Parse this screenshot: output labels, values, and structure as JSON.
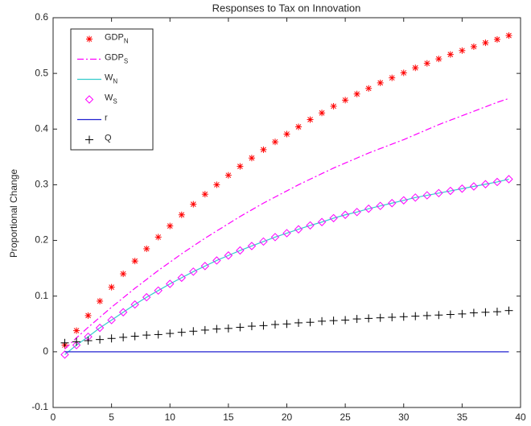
{
  "chart_data": {
    "type": "line",
    "title": "Responses to Tax on Innovation",
    "y_label": "Proportional Change",
    "x": [
      1,
      2,
      3,
      4,
      5,
      6,
      7,
      8,
      9,
      10,
      11,
      12,
      13,
      14,
      15,
      16,
      17,
      18,
      19,
      20,
      21,
      22,
      23,
      24,
      25,
      26,
      27,
      28,
      29,
      30,
      31,
      32,
      33,
      34,
      35,
      36,
      37,
      38,
      39
    ],
    "series": [
      {
        "name": "GDP_N",
        "color": "#ff0000",
        "marker": "star",
        "line": null,
        "values": [
          0.012,
          0.038,
          0.065,
          0.091,
          0.116,
          0.14,
          0.163,
          0.185,
          0.206,
          0.226,
          0.246,
          0.265,
          0.283,
          0.3,
          0.317,
          0.333,
          0.348,
          0.363,
          0.377,
          0.391,
          0.404,
          0.417,
          0.429,
          0.441,
          0.452,
          0.463,
          0.473,
          0.483,
          0.492,
          0.501,
          0.51,
          0.518,
          0.526,
          0.534,
          0.541,
          0.548,
          0.555,
          0.561,
          0.568
        ]
      },
      {
        "name": "GDP_S",
        "color": "#ff00ff",
        "marker": null,
        "line": "dashdot",
        "values": [
          0.005,
          0.025,
          0.044,
          0.062,
          0.08,
          0.097,
          0.114,
          0.13,
          0.146,
          0.161,
          0.176,
          0.19,
          0.204,
          0.217,
          0.23,
          0.243,
          0.255,
          0.267,
          0.278,
          0.289,
          0.3,
          0.31,
          0.32,
          0.33,
          0.339,
          0.348,
          0.357,
          0.365,
          0.373,
          0.381,
          0.39,
          0.399,
          0.408,
          0.416,
          0.424,
          0.432,
          0.44,
          0.448,
          0.455
        ]
      },
      {
        "name": "W_N",
        "color": "#33cccc",
        "marker": null,
        "line": "solid",
        "values": [
          -0.005,
          0.012,
          0.027,
          0.043,
          0.057,
          0.071,
          0.085,
          0.098,
          0.11,
          0.122,
          0.133,
          0.144,
          0.154,
          0.164,
          0.173,
          0.182,
          0.19,
          0.198,
          0.206,
          0.213,
          0.22,
          0.227,
          0.233,
          0.24,
          0.246,
          0.251,
          0.257,
          0.262,
          0.267,
          0.272,
          0.277,
          0.281,
          0.285,
          0.289,
          0.293,
          0.297,
          0.301,
          0.305,
          0.31
        ]
      },
      {
        "name": "W_S",
        "color": "#ff00ff",
        "marker": "diamond",
        "line": null,
        "values": [
          -0.005,
          0.012,
          0.027,
          0.043,
          0.057,
          0.071,
          0.085,
          0.098,
          0.11,
          0.122,
          0.133,
          0.144,
          0.154,
          0.164,
          0.173,
          0.182,
          0.19,
          0.198,
          0.206,
          0.213,
          0.22,
          0.227,
          0.233,
          0.24,
          0.246,
          0.251,
          0.257,
          0.262,
          0.267,
          0.272,
          0.277,
          0.281,
          0.285,
          0.289,
          0.293,
          0.297,
          0.301,
          0.305,
          0.31
        ]
      },
      {
        "name": "r",
        "color": "#2020d0",
        "marker": null,
        "line": "solid",
        "values": [
          0,
          0,
          0,
          0,
          0,
          0,
          0,
          0,
          0,
          0,
          0,
          0,
          0,
          0,
          0,
          0,
          0,
          0,
          0,
          0,
          0,
          0,
          0,
          0,
          0,
          0,
          0,
          0,
          0,
          0,
          0,
          0,
          0,
          0,
          0,
          0,
          0,
          0,
          0
        ]
      },
      {
        "name": "Q",
        "color": "#000000",
        "marker": "plus",
        "line": null,
        "values": [
          0.016,
          0.018,
          0.02,
          0.022,
          0.024,
          0.026,
          0.028,
          0.03,
          0.031,
          0.033,
          0.035,
          0.037,
          0.039,
          0.041,
          0.042,
          0.044,
          0.046,
          0.047,
          0.049,
          0.05,
          0.052,
          0.053,
          0.055,
          0.056,
          0.057,
          0.059,
          0.06,
          0.061,
          0.062,
          0.063,
          0.064,
          0.065,
          0.066,
          0.067,
          0.068,
          0.07,
          0.071,
          0.072,
          0.074
        ]
      }
    ],
    "xlim": [
      0,
      40
    ],
    "xticks": [
      0,
      5,
      10,
      15,
      20,
      25,
      30,
      35,
      40
    ],
    "ylim": [
      -0.1,
      0.6
    ],
    "yticks": [
      -0.1,
      0,
      0.1,
      0.2,
      0.3,
      0.4,
      0.5,
      0.6
    ],
    "legend": "upper-left"
  }
}
